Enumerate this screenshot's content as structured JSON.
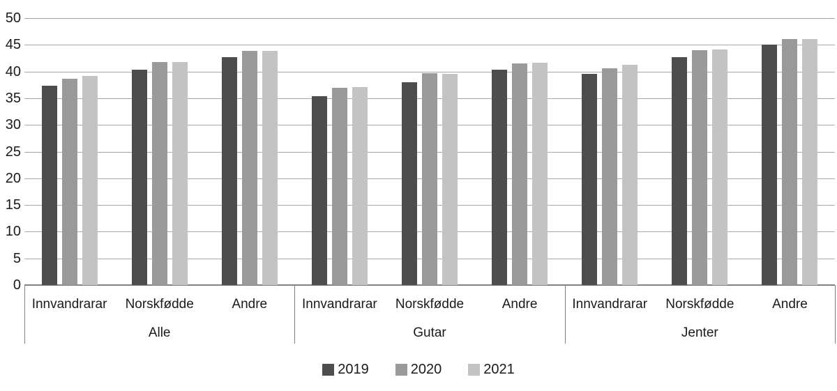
{
  "chart_data": {
    "type": "bar",
    "title": "",
    "xlabel": "",
    "ylabel": "",
    "ylim": [
      0,
      50
    ],
    "yticks": [
      0,
      5,
      10,
      15,
      20,
      25,
      30,
      35,
      40,
      45,
      50
    ],
    "grid": true,
    "legend_position": "bottom",
    "group_labels": [
      "Alle",
      "Gutar",
      "Jenter"
    ],
    "subgroup_labels": [
      "Innvandrarar",
      "Norskfødde",
      "Andre"
    ],
    "series": [
      {
        "name": "2019",
        "color": "#4d4d4d",
        "values": [
          [
            37.4,
            40.3,
            42.7
          ],
          [
            35.4,
            38.0,
            40.3
          ],
          [
            39.6,
            42.7,
            45.0
          ]
        ]
      },
      {
        "name": "2020",
        "color": "#9a9a9a",
        "values": [
          [
            38.7,
            41.8,
            43.9
          ],
          [
            36.9,
            39.7,
            41.5
          ],
          [
            40.6,
            44.0,
            46.1
          ]
        ]
      },
      {
        "name": "2021",
        "color": "#c3c3c3",
        "values": [
          [
            39.1,
            41.8,
            43.9
          ],
          [
            37.1,
            39.5,
            41.7
          ],
          [
            41.3,
            44.1,
            46.1
          ]
        ]
      }
    ],
    "colors": {
      "grid_line": "#a8a8a8",
      "axis_line": "#808080",
      "text": "#1a1a1a",
      "background": "#ffffff"
    }
  }
}
